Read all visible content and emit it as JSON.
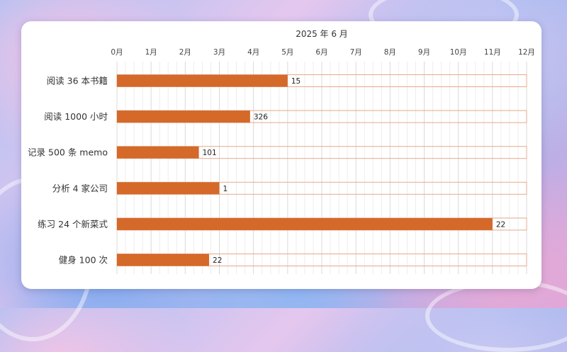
{
  "chart_data": {
    "type": "bar",
    "orientation": "horizontal",
    "title": "2025 年 6 月",
    "x_ticks": [
      "0月",
      "1月",
      "2月",
      "3月",
      "4月",
      "5月",
      "6月",
      "7月",
      "8月",
      "9月",
      "10月",
      "11月",
      "12月"
    ],
    "xlim": [
      0,
      12
    ],
    "categories": [
      "阅读 36 本书籍",
      "阅读 1000 小时",
      "记录 500 条 memo",
      "分析 4 家公司",
      "练习 24 个新菜式",
      "健身 100 次"
    ],
    "values": [
      5.0,
      3.9,
      2.4,
      3.0,
      11.0,
      2.7
    ],
    "data_labels": [
      "15",
      "326",
      "101",
      "1",
      "22",
      "22"
    ],
    "bar_color": "#d4692a",
    "track_border_color": "#e7a98c",
    "grid": true
  }
}
